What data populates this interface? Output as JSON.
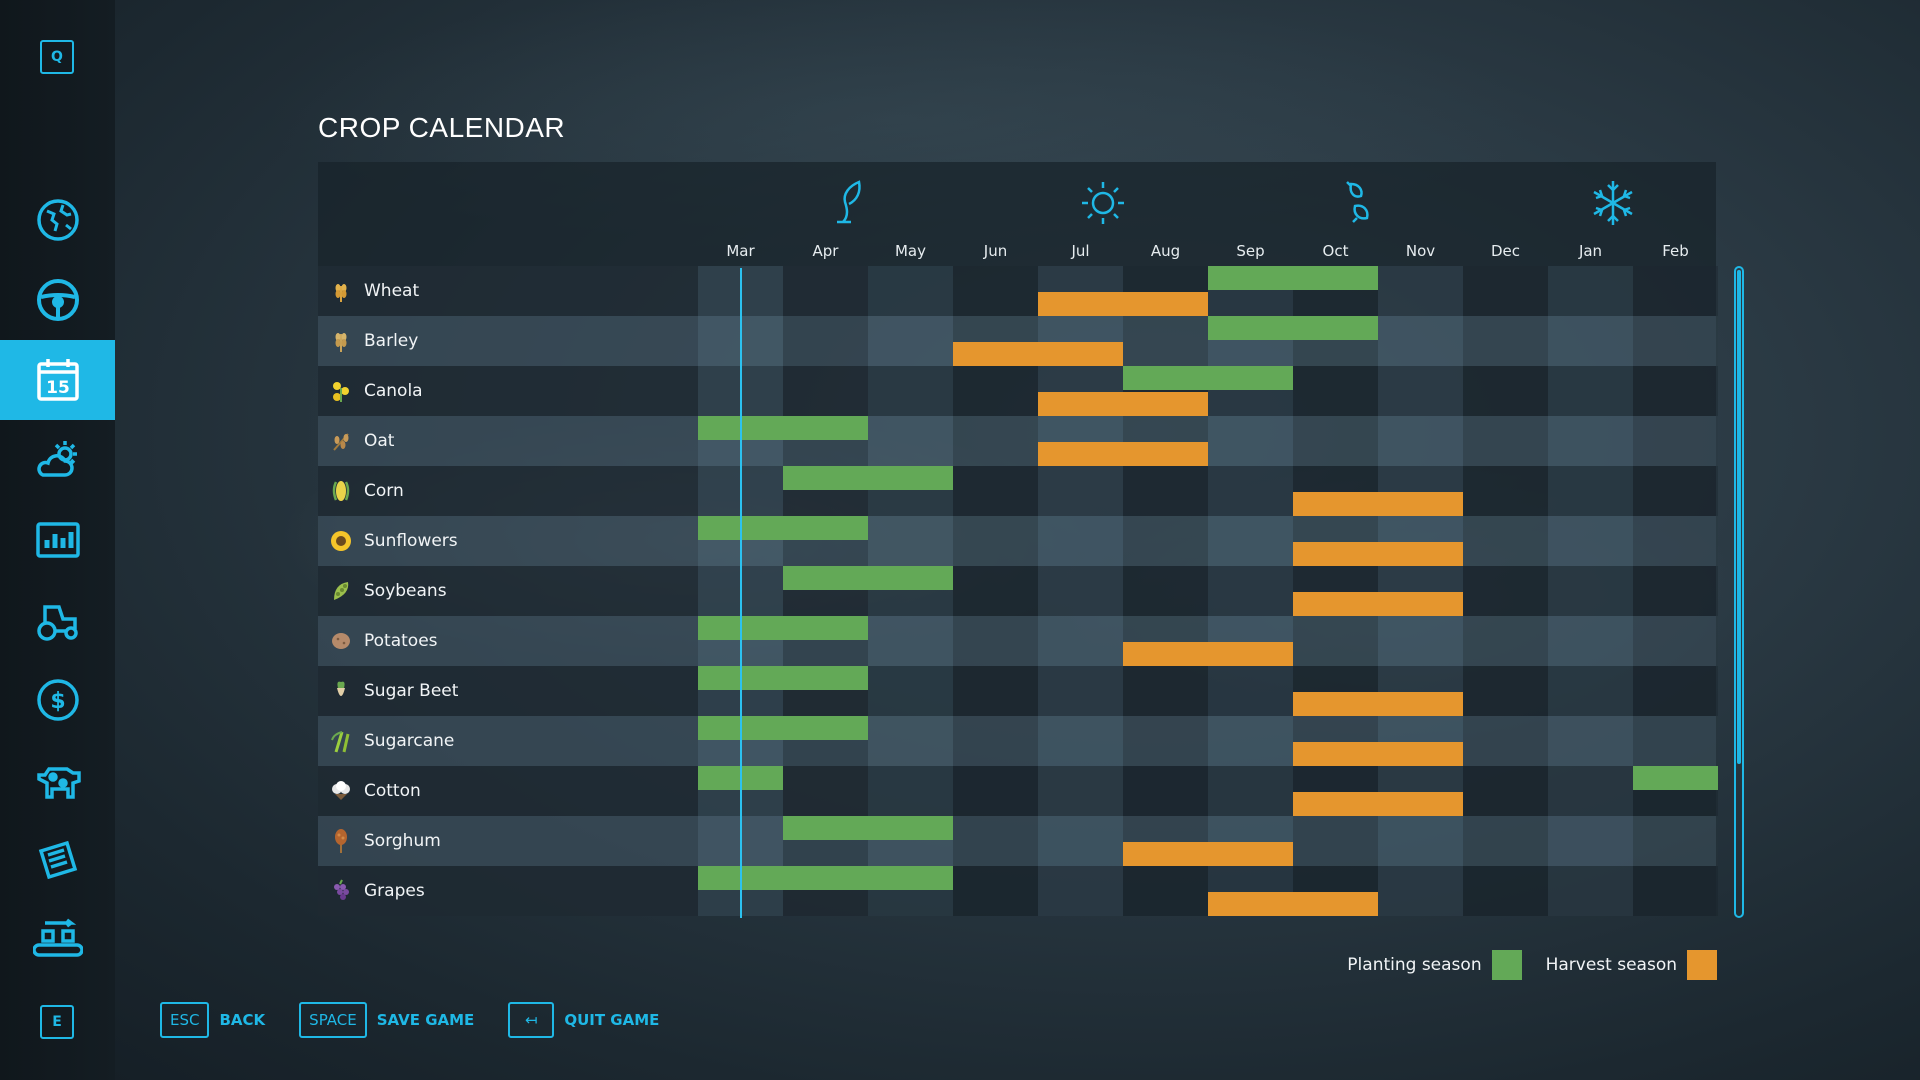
{
  "page": {
    "title": "CROP CALENDAR"
  },
  "sidebar": {
    "top_key": "Q",
    "bottom_key": "E",
    "items": [
      {
        "name": "map",
        "icon": "globe-map-icon",
        "active": false
      },
      {
        "name": "vehicles",
        "icon": "steering-wheel-icon",
        "active": false
      },
      {
        "name": "calendar",
        "icon": "calendar-icon",
        "label": "15",
        "active": true
      },
      {
        "name": "weather",
        "icon": "weather-cloud-sun-icon",
        "active": false
      },
      {
        "name": "statistics",
        "icon": "statistics-chart-icon",
        "active": false
      },
      {
        "name": "garage",
        "icon": "tractor-icon",
        "active": false
      },
      {
        "name": "finances",
        "icon": "dollar-coin-icon",
        "active": false
      },
      {
        "name": "animals",
        "icon": "cow-icon",
        "active": false
      },
      {
        "name": "contracts",
        "icon": "contracts-papers-icon",
        "active": false
      },
      {
        "name": "production",
        "icon": "production-conveyor-icon",
        "active": false
      }
    ]
  },
  "seasons": [
    {
      "name": "spring",
      "icon": "leaf-sprout-icon",
      "month_index": 1
    },
    {
      "name": "summer",
      "icon": "sun-icon",
      "month_index": 4
    },
    {
      "name": "autumn",
      "icon": "falling-leaves-icon",
      "month_index": 7
    },
    {
      "name": "winter",
      "icon": "snowflake-icon",
      "month_index": 10
    }
  ],
  "months": [
    "Mar",
    "Apr",
    "May",
    "Jun",
    "Jul",
    "Aug",
    "Sep",
    "Oct",
    "Nov",
    "Dec",
    "Jan",
    "Feb"
  ],
  "current_month_fraction": 0.5,
  "crops": [
    {
      "name": "Wheat",
      "icon": "wheat-icon",
      "plant": [
        [
          6,
          7
        ]
      ],
      "harvest": [
        [
          4,
          5
        ]
      ]
    },
    {
      "name": "Barley",
      "icon": "barley-icon",
      "plant": [
        [
          6,
          7
        ]
      ],
      "harvest": [
        [
          3,
          4
        ]
      ]
    },
    {
      "name": "Canola",
      "icon": "canola-icon",
      "plant": [
        [
          5,
          6
        ]
      ],
      "harvest": [
        [
          4,
          5
        ]
      ]
    },
    {
      "name": "Oat",
      "icon": "oat-icon",
      "plant": [
        [
          0,
          1
        ]
      ],
      "harvest": [
        [
          4,
          5
        ]
      ]
    },
    {
      "name": "Corn",
      "icon": "corn-icon",
      "plant": [
        [
          1,
          2
        ]
      ],
      "harvest": [
        [
          7,
          8
        ]
      ]
    },
    {
      "name": "Sunflowers",
      "icon": "sunflower-icon",
      "plant": [
        [
          0,
          1
        ]
      ],
      "harvest": [
        [
          7,
          8
        ]
      ]
    },
    {
      "name": "Soybeans",
      "icon": "soybeans-icon",
      "plant": [
        [
          1,
          2
        ]
      ],
      "harvest": [
        [
          7,
          8
        ]
      ]
    },
    {
      "name": "Potatoes",
      "icon": "potato-icon",
      "plant": [
        [
          0,
          1
        ]
      ],
      "harvest": [
        [
          5,
          6
        ]
      ]
    },
    {
      "name": "Sugar Beet",
      "icon": "sugar-beet-icon",
      "plant": [
        [
          0,
          1
        ]
      ],
      "harvest": [
        [
          7,
          8
        ]
      ]
    },
    {
      "name": "Sugarcane",
      "icon": "sugarcane-icon",
      "plant": [
        [
          0,
          1
        ]
      ],
      "harvest": [
        [
          7,
          8
        ]
      ]
    },
    {
      "name": "Cotton",
      "icon": "cotton-icon",
      "plant": [
        [
          0,
          0
        ],
        [
          11,
          11
        ]
      ],
      "harvest": [
        [
          7,
          8
        ]
      ]
    },
    {
      "name": "Sorghum",
      "icon": "sorghum-icon",
      "plant": [
        [
          1,
          2
        ]
      ],
      "harvest": [
        [
          5,
          6
        ]
      ]
    },
    {
      "name": "Grapes",
      "icon": "grapes-icon",
      "plant": [
        [
          0,
          2
        ]
      ],
      "harvest": [
        [
          6,
          7
        ]
      ]
    }
  ],
  "legend": {
    "planting": "Planting season",
    "harvest": "Harvest season"
  },
  "colors": {
    "accent": "#1fb8e6",
    "planting": "#63a957",
    "harvest": "#e5962e"
  },
  "footer": [
    {
      "key": "ESC",
      "label": "BACK"
    },
    {
      "key": "SPACE",
      "label": "SAVE GAME"
    },
    {
      "key": "↤",
      "label": "QUIT GAME"
    }
  ]
}
